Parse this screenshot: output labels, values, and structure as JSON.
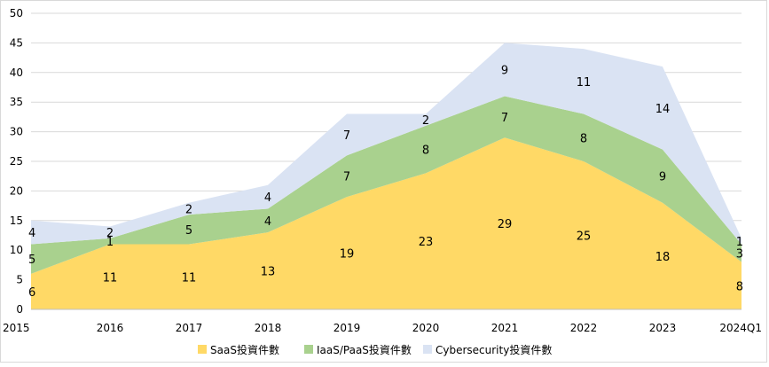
{
  "chart_data": {
    "type": "area",
    "stacked": true,
    "categories": [
      "2015",
      "2016",
      "2017",
      "2018",
      "2019",
      "2020",
      "2021",
      "2022",
      "2023",
      "2024Q1"
    ],
    "series": [
      {
        "name": "SaaS投資件數",
        "values": [
          6,
          11,
          11,
          13,
          19,
          23,
          29,
          25,
          18,
          8
        ],
        "color": "#FFD966"
      },
      {
        "name": "IaaS/PaaS投資件數",
        "values": [
          5,
          1,
          5,
          4,
          7,
          8,
          7,
          8,
          9,
          3
        ],
        "color": "#A9D18E"
      },
      {
        "name": "Cybersecurity投資件數",
        "values": [
          4,
          2,
          2,
          4,
          7,
          2,
          9,
          11,
          14,
          1
        ],
        "color": "#DAE3F3"
      }
    ],
    "title": "",
    "xlabel": "",
    "ylabel": "",
    "ylim": [
      0,
      50
    ],
    "yticks": [
      0,
      5,
      10,
      15,
      20,
      25,
      30,
      35,
      40,
      45,
      50
    ],
    "grid": true,
    "legend": "bottom"
  }
}
